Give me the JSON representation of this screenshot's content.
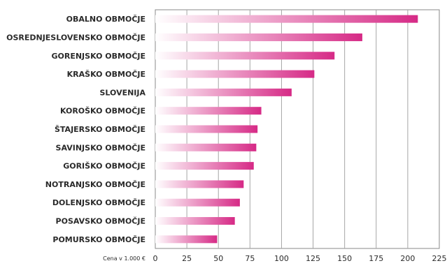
{
  "chart_data": {
    "type": "bar",
    "orientation": "horizontal",
    "title": "",
    "xlabel": "Cena v 1.000 €",
    "ylabel": "",
    "xlim": [
      0,
      225
    ],
    "xticks": [
      0,
      25,
      50,
      75,
      100,
      125,
      150,
      175,
      200,
      225
    ],
    "categories": [
      "OBALNO OBMOČJE",
      "OSREDNJESLOVENSKO OBMOČJE",
      "GORENJSKO OBMOČJE",
      "KRAŠKO OBMOČJE",
      "SLOVENIJA",
      "KOROŠKO OBMOČJE",
      "ŠTAJERSKO OBMOČJE",
      "SAVINJSKO OBMOČJE",
      "GORIŠKO OBMOČJE",
      "NOTRANJSKO OBMOČJE",
      "DOLENJSKO OBMOČJE",
      "POSAVSKO  OBMOČJE",
      "POMURSKO OBMOČJE"
    ],
    "values": [
      208,
      164,
      142,
      126,
      108,
      84,
      81,
      80,
      78,
      70,
      67,
      63,
      49
    ],
    "grid": true,
    "legend": "none",
    "colors": {
      "bar_start": "#ffffff",
      "bar_end": "#d62a86",
      "grid": "#a6a6a6",
      "axis": "#808080"
    }
  }
}
